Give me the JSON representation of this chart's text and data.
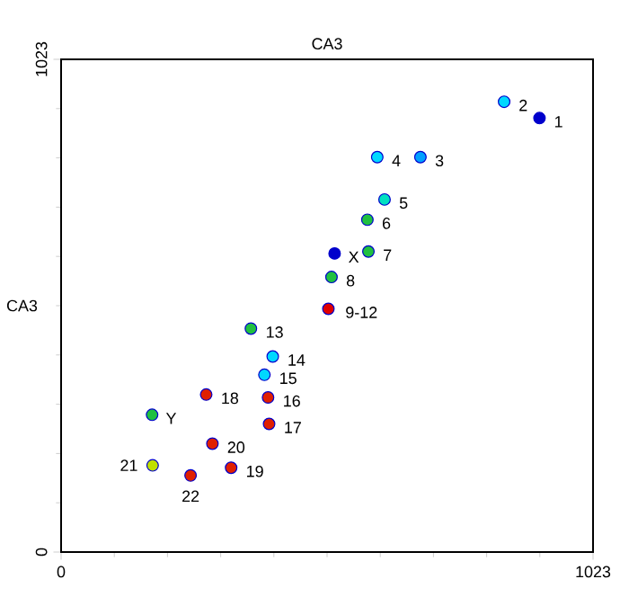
{
  "chart_data": {
    "type": "scatter",
    "title": "CA3",
    "ylabel": "CA3",
    "x": [
      920,
      852,
      608,
      691,
      622,
      589,
      526,
      591,
      520,
      514,
      365,
      407,
      391,
      398,
      279,
      175,
      400,
      291,
      176,
      327,
      249
    ],
    "values": [
      901,
      935,
      820,
      820,
      732,
      690,
      620,
      624,
      571,
      505,
      464,
      406,
      368,
      321,
      327,
      285,
      266,
      225,
      180,
      175,
      159
    ],
    "colors": [
      "#0000cc",
      "#00d8ff",
      "#00d8ff",
      "#00a0ff",
      "#00e0c0",
      "#20c040",
      "#0000cc",
      "#20c040",
      "#20c040",
      "#e00000",
      "#20c040",
      "#00d8ff",
      "#00d8ff",
      "#e02000",
      "#e02000",
      "#20c040",
      "#e02000",
      "#e02000",
      "#c0e000",
      "#e02000",
      "#e02000"
    ],
    "marker": "circle",
    "xlim": [
      0,
      1023
    ],
    "ylim": [
      0,
      1023
    ],
    "xticks": [
      0,
      1023
    ],
    "yticks": [
      0,
      1023
    ],
    "annotations": [
      {
        "text": "1",
        "x": 920,
        "y": 901
      },
      {
        "text": "2",
        "x": 852,
        "y": 935
      },
      {
        "text": "4",
        "x": 608,
        "y": 820
      },
      {
        "text": "3",
        "x": 691,
        "y": 820
      },
      {
        "text": "5",
        "x": 622,
        "y": 732
      },
      {
        "text": "6",
        "x": 589,
        "y": 690
      },
      {
        "text": "X",
        "x": 526,
        "y": 620
      },
      {
        "text": "7",
        "x": 591,
        "y": 624
      },
      {
        "text": "8",
        "x": 520,
        "y": 571
      },
      {
        "text": "9-12",
        "x": 514,
        "y": 505
      },
      {
        "text": "13",
        "x": 365,
        "y": 464
      },
      {
        "text": "14",
        "x": 407,
        "y": 406
      },
      {
        "text": "15",
        "x": 391,
        "y": 368
      },
      {
        "text": "16",
        "x": 398,
        "y": 321
      },
      {
        "text": "18",
        "x": 279,
        "y": 327
      },
      {
        "text": "Y",
        "x": 175,
        "y": 285
      },
      {
        "text": "17",
        "x": 400,
        "y": 266
      },
      {
        "text": "20",
        "x": 291,
        "y": 225
      },
      {
        "text": "21",
        "x": 176,
        "y": 180
      },
      {
        "text": "19",
        "x": 327,
        "y": 175
      },
      {
        "text": "22",
        "x": 249,
        "y": 159
      }
    ]
  }
}
